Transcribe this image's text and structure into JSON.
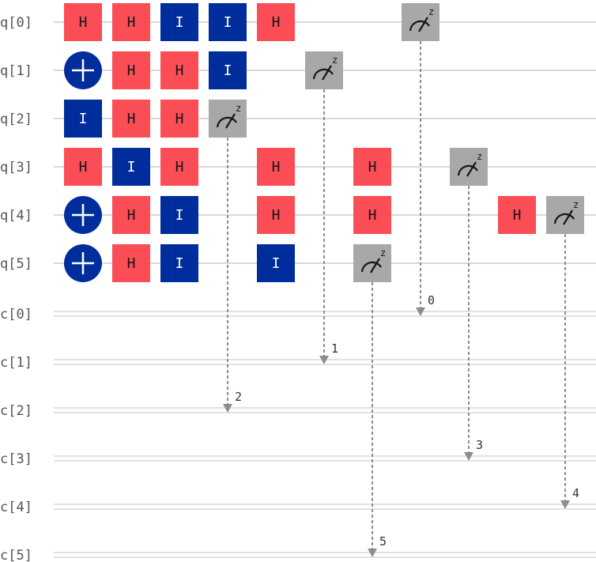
{
  "colors": {
    "wire": "#d9d9d9",
    "hadamard": "#fa4d56",
    "hadamard_text": "#161616",
    "identity": "#002d9c",
    "identity_text": "#ffffff",
    "cnot_target": "#002d9c",
    "measure": "#a8a8a8",
    "measure_line": "#8d8d8d",
    "label": "#555555"
  },
  "qubits": [
    "q[0]",
    "q[1]",
    "q[2]",
    "q[3]",
    "q[4]",
    "q[5]"
  ],
  "clbits": [
    "c[0]",
    "c[1]",
    "c[2]",
    "c[3]",
    "c[4]",
    "c[5]"
  ],
  "gates": [
    {
      "type": "H",
      "label": "H",
      "qubit": 0,
      "column": 0
    },
    {
      "type": "H",
      "label": "H",
      "qubit": 0,
      "column": 1
    },
    {
      "type": "I",
      "label": "I",
      "qubit": 0,
      "column": 2
    },
    {
      "type": "I",
      "label": "I",
      "qubit": 0,
      "column": 3
    },
    {
      "type": "H",
      "label": "H",
      "qubit": 0,
      "column": 4
    },
    {
      "type": "MEASURE",
      "label": "z",
      "qubit": 0,
      "column": 7,
      "clbit": 0,
      "bit_label": "0"
    },
    {
      "type": "X",
      "label": "",
      "qubit": 1,
      "column": 0
    },
    {
      "type": "H",
      "label": "H",
      "qubit": 1,
      "column": 1
    },
    {
      "type": "H",
      "label": "H",
      "qubit": 1,
      "column": 2
    },
    {
      "type": "I",
      "label": "I",
      "qubit": 1,
      "column": 3
    },
    {
      "type": "MEASURE",
      "label": "z",
      "qubit": 1,
      "column": 5,
      "clbit": 1,
      "bit_label": "1"
    },
    {
      "type": "I",
      "label": "I",
      "qubit": 2,
      "column": 0
    },
    {
      "type": "H",
      "label": "H",
      "qubit": 2,
      "column": 1
    },
    {
      "type": "H",
      "label": "H",
      "qubit": 2,
      "column": 2
    },
    {
      "type": "MEASURE",
      "label": "z",
      "qubit": 2,
      "column": 3,
      "clbit": 2,
      "bit_label": "2"
    },
    {
      "type": "H",
      "label": "H",
      "qubit": 3,
      "column": 0
    },
    {
      "type": "I",
      "label": "I",
      "qubit": 3,
      "column": 1
    },
    {
      "type": "H",
      "label": "H",
      "qubit": 3,
      "column": 2
    },
    {
      "type": "H",
      "label": "H",
      "qubit": 3,
      "column": 4
    },
    {
      "type": "H",
      "label": "H",
      "qubit": 3,
      "column": 6
    },
    {
      "type": "MEASURE",
      "label": "z",
      "qubit": 3,
      "column": 8,
      "clbit": 3,
      "bit_label": "3"
    },
    {
      "type": "X",
      "label": "",
      "qubit": 4,
      "column": 0
    },
    {
      "type": "H",
      "label": "H",
      "qubit": 4,
      "column": 1
    },
    {
      "type": "I",
      "label": "I",
      "qubit": 4,
      "column": 2
    },
    {
      "type": "H",
      "label": "H",
      "qubit": 4,
      "column": 4
    },
    {
      "type": "H",
      "label": "H",
      "qubit": 4,
      "column": 6
    },
    {
      "type": "H",
      "label": "H",
      "qubit": 4,
      "column": 9
    },
    {
      "type": "MEASURE",
      "label": "z",
      "qubit": 4,
      "column": 10,
      "clbit": 4,
      "bit_label": "4"
    },
    {
      "type": "X",
      "label": "",
      "qubit": 5,
      "column": 0
    },
    {
      "type": "H",
      "label": "H",
      "qubit": 5,
      "column": 1
    },
    {
      "type": "I",
      "label": "I",
      "qubit": 5,
      "column": 2
    },
    {
      "type": "I",
      "label": "I",
      "qubit": 5,
      "column": 4
    },
    {
      "type": "MEASURE",
      "label": "z",
      "qubit": 5,
      "column": 6,
      "clbit": 5,
      "bit_label": "5"
    }
  ]
}
